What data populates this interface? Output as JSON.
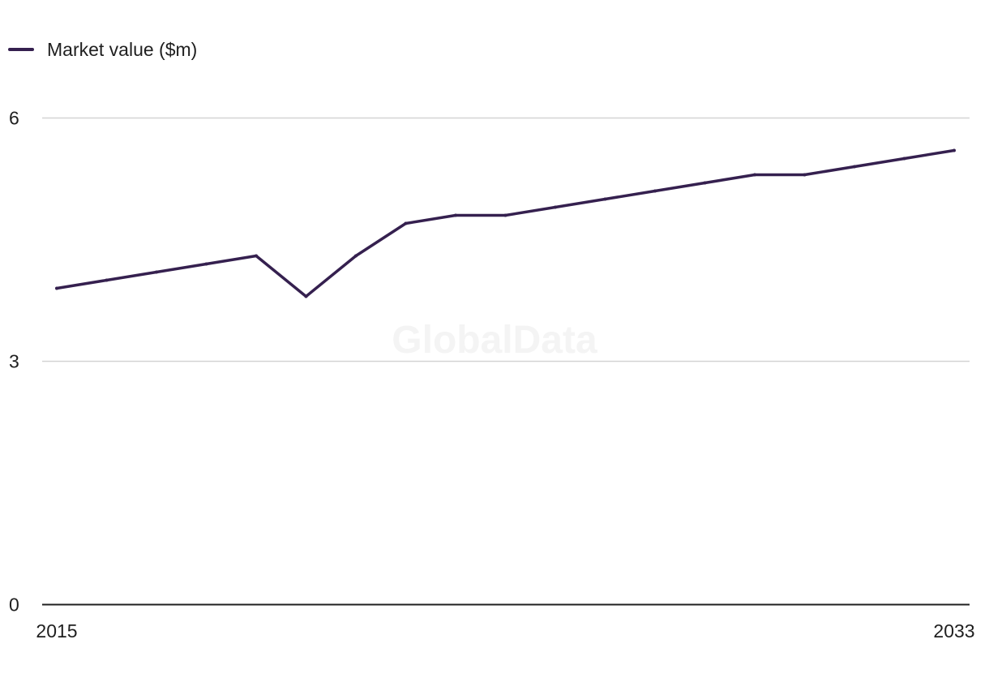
{
  "legend": {
    "label": "Market value ($m)"
  },
  "watermark": "GlobalData",
  "colors": {
    "line": "#35204f",
    "grid": "#d4d4d4",
    "axis": "#1f1f1f"
  },
  "chart_data": {
    "type": "line",
    "x": [
      2015,
      2016,
      2017,
      2018,
      2019,
      2020,
      2021,
      2022,
      2023,
      2024,
      2025,
      2026,
      2027,
      2028,
      2029,
      2030,
      2031,
      2032,
      2033
    ],
    "series": [
      {
        "name": "Market value ($m)",
        "values": [
          3.9,
          4.0,
          4.1,
          4.2,
          4.3,
          3.8,
          4.3,
          4.7,
          4.8,
          4.8,
          4.9,
          5.0,
          5.1,
          5.2,
          5.3,
          5.3,
          5.4,
          5.5,
          5.6
        ]
      }
    ],
    "xticks": [
      "2015",
      "2033"
    ],
    "yticks": [
      "0",
      "3",
      "6"
    ],
    "ylim": [
      0,
      6
    ],
    "grid": true,
    "legend_position": "top-left"
  }
}
